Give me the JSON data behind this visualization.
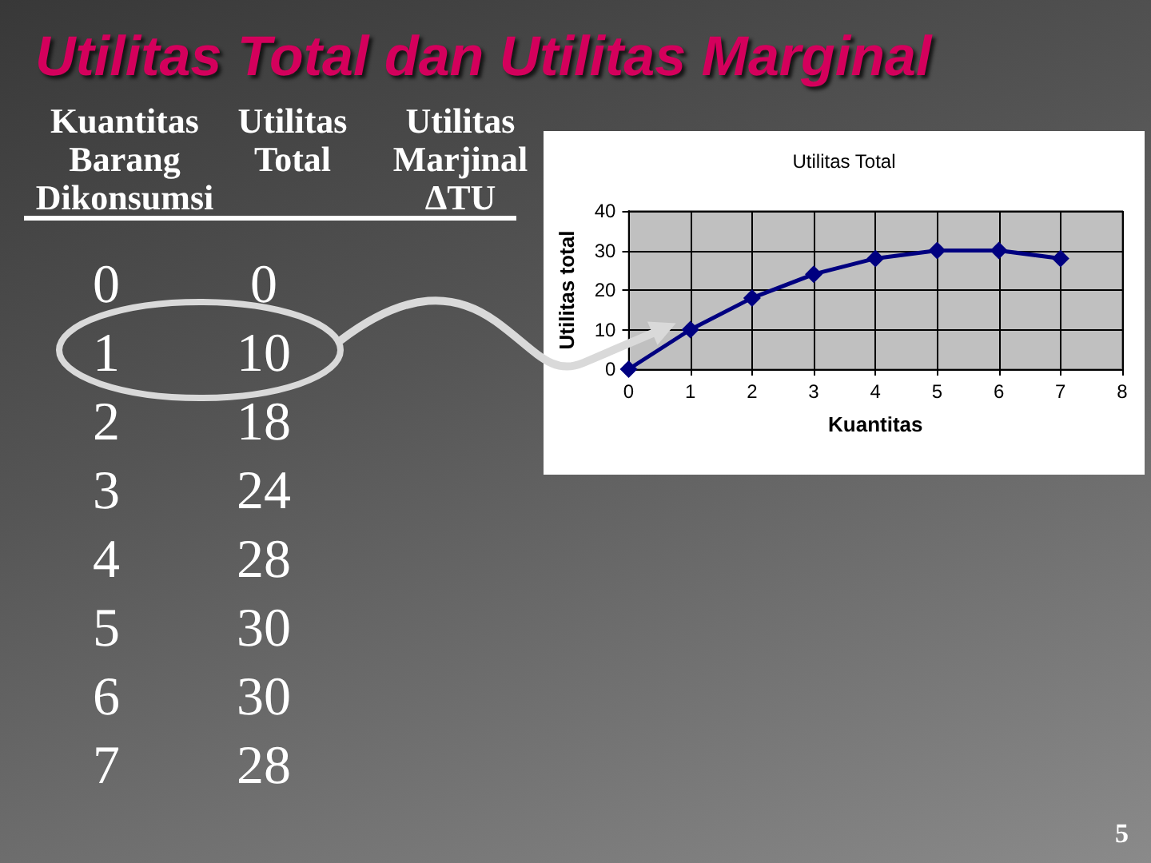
{
  "chart_data": [
    {
      "type": "heatmap",
      "title": "Utilitas Total dan Utilitas Marginal",
      "ylabel": "Kuantitas Barang Dikonsumsi",
      "categories": [
        "Utilitas Total",
        "Utilitas Marjinal ΔTU"
      ],
      "y_categories": [
        "0",
        "1",
        "2",
        "3",
        "4",
        "5",
        "6",
        "7"
      ],
      "cells": [
        [
          0,
          null
        ],
        [
          10,
          null
        ],
        [
          18,
          null
        ],
        [
          24,
          null
        ],
        [
          28,
          null
        ],
        [
          30,
          null
        ],
        [
          30,
          null
        ],
        [
          28,
          null
        ]
      ],
      "data_labels": true,
      "annotations": [
        "5"
      ]
    },
    {
      "type": "line",
      "title": "Utilitas Total",
      "xlabel": "Kuantitas",
      "ylabel": "Utilitas total",
      "x": [
        0,
        1,
        2,
        3,
        4,
        5,
        6,
        7
      ],
      "values": [
        0,
        10,
        18,
        24,
        28,
        30,
        30,
        28
      ],
      "color": "#000080",
      "marker": "diamond",
      "xlim": [
        0,
        8
      ],
      "xticks": [
        0,
        1,
        2,
        3,
        4,
        5,
        6,
        7,
        8
      ],
      "ylim": [
        0,
        40
      ],
      "yticks": [
        0,
        10,
        20,
        30,
        40
      ],
      "grid": true
    }
  ]
}
